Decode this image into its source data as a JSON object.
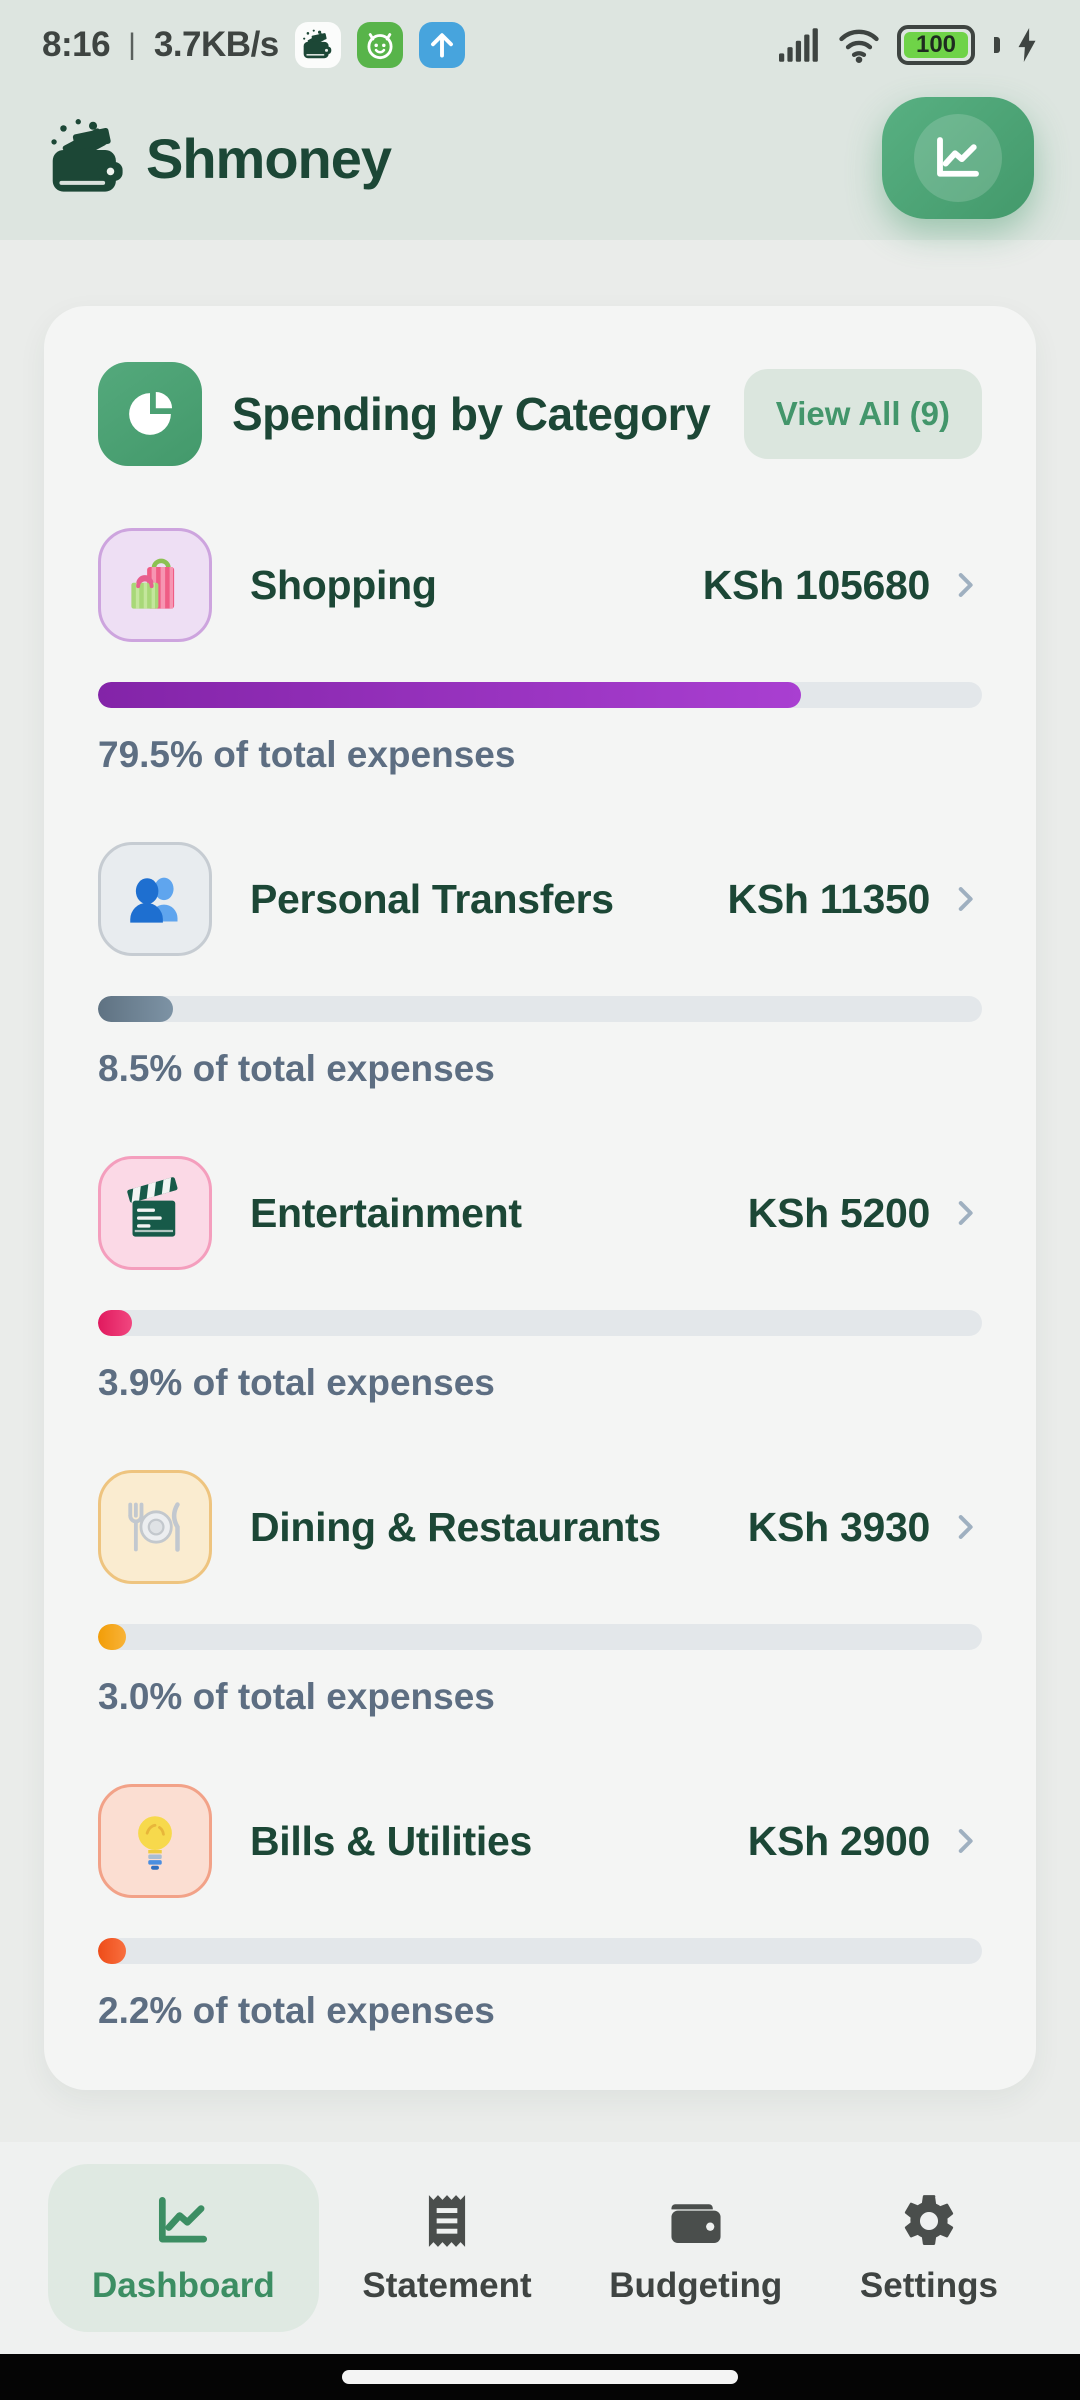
{
  "status_bar": {
    "time": "8:16",
    "separator": "|",
    "network_speed": "3.7KB/s",
    "battery_level": "100",
    "notification_icons": [
      "shmoney-app",
      "bot-face",
      "upload-arrow"
    ]
  },
  "header": {
    "app_name": "Shmoney",
    "brand_color": "#1c4736",
    "accent_green": "#43996b"
  },
  "spending_card": {
    "title": "Spending by Category",
    "view_all_label": "View All (9)",
    "categories": [
      {
        "id": "shopping",
        "name": "Shopping",
        "icon": "shopping-bags",
        "amount": "KSh 105680",
        "percent": 79.5,
        "percent_label": "79.5% of total expenses",
        "tile_bg": "#eedff4",
        "tile_border": "#cda4de",
        "bar_start": "#8324a8",
        "bar_end": "#a93fd1"
      },
      {
        "id": "personal-transfers",
        "name": "Personal Transfers",
        "icon": "people",
        "amount": "KSh 11350",
        "percent": 8.5,
        "percent_label": "8.5% of total expenses",
        "tile_bg": "#e8ecef",
        "tile_border": "#c6ccd2",
        "bar_start": "#5f7282",
        "bar_end": "#7d93a5"
      },
      {
        "id": "entertainment",
        "name": "Entertainment",
        "icon": "clapperboard",
        "amount": "KSh 5200",
        "percent": 3.9,
        "percent_label": "3.9% of total expenses",
        "tile_bg": "#fbd9e6",
        "tile_border": "#f49ebd",
        "bar_start": "#e0195e",
        "bar_end": "#f1467f"
      },
      {
        "id": "dining-restaurants",
        "name": "Dining & Restaurants",
        "icon": "dining",
        "amount": "KSh 3930",
        "percent": 3.0,
        "percent_label": "3.0% of total expenses",
        "tile_bg": "#faecd0",
        "tile_border": "#eec47f",
        "bar_start": "#f29d07",
        "bar_end": "#f8b338"
      },
      {
        "id": "bills-utilities",
        "name": "Bills & Utilities",
        "icon": "bulb",
        "amount": "KSh 2900",
        "percent": 2.2,
        "percent_label": "2.2% of total expenses",
        "tile_bg": "#fbded2",
        "tile_border": "#f2a288",
        "bar_start": "#ee4c18",
        "bar_end": "#f86f3f"
      }
    ]
  },
  "bottom_nav": {
    "items": [
      {
        "id": "dashboard",
        "label": "Dashboard",
        "icon": "chart-line",
        "active": true
      },
      {
        "id": "statement",
        "label": "Statement",
        "icon": "receipt",
        "active": false
      },
      {
        "id": "budgeting",
        "label": "Budgeting",
        "icon": "wallet",
        "active": false
      },
      {
        "id": "settings",
        "label": "Settings",
        "icon": "gear",
        "active": false
      }
    ]
  }
}
